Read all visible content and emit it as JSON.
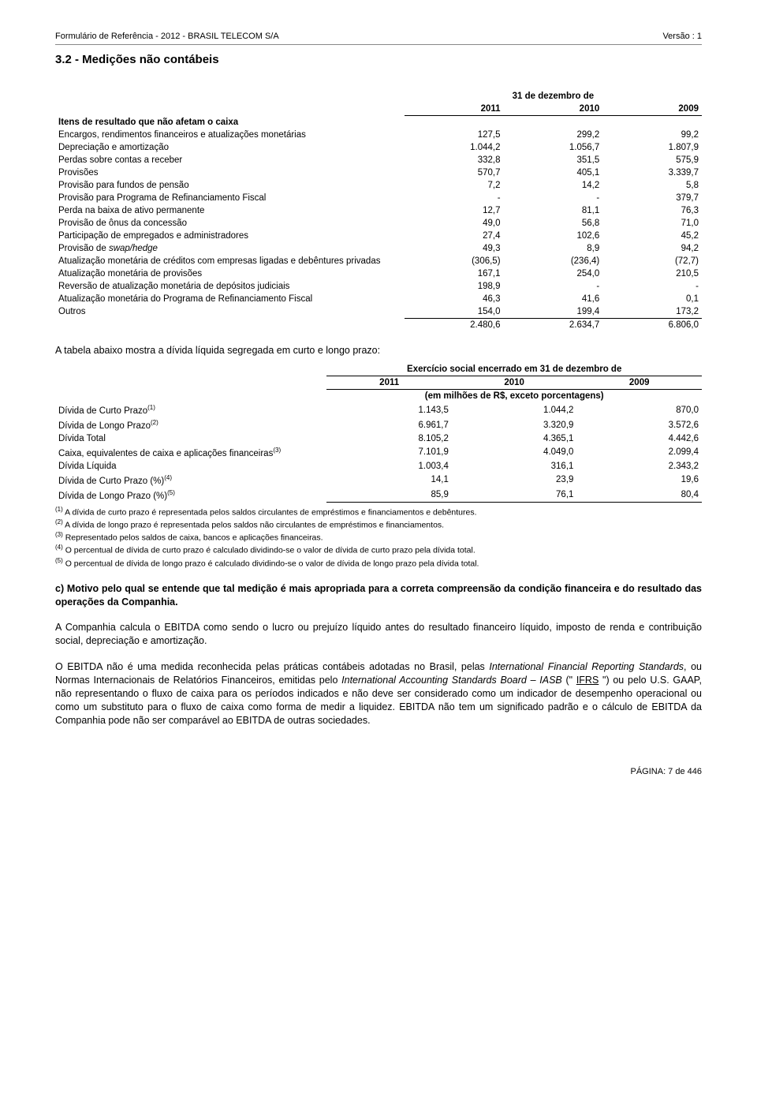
{
  "header": {
    "left": "Formulário de Referência - 2012 - BRASIL TELECOM S/A",
    "right": "Versão : 1"
  },
  "section_title": "3.2 - Medições não contábeis",
  "table1": {
    "top_header": "31 de dezembro de",
    "years": [
      "2011",
      "2010",
      "2009"
    ],
    "group_label": "Itens de resultado que não afetam o caixa",
    "rows": [
      {
        "label": "Encargos, rendimentos financeiros e atualizações monetárias",
        "v": [
          "127,5",
          "299,2",
          "99,2"
        ]
      },
      {
        "label": "Depreciação e amortização",
        "v": [
          "1.044,2",
          "1.056,7",
          "1.807,9"
        ]
      },
      {
        "label": "Perdas sobre contas a receber",
        "v": [
          "332,8",
          "351,5",
          "575,9"
        ]
      },
      {
        "label": "Provisões",
        "v": [
          "570,7",
          "405,1",
          "3.339,7"
        ]
      },
      {
        "label": "Provisão para fundos de pensão",
        "v": [
          "7,2",
          "14,2",
          "5,8"
        ]
      },
      {
        "label": "Provisão para Programa de Refinanciamento Fiscal",
        "v": [
          "-",
          "-",
          "379,7"
        ]
      },
      {
        "label": "Perda na baixa de ativo permanente",
        "v": [
          "12,7",
          "81,1",
          "76,3"
        ]
      },
      {
        "label": "Provisão de ônus da concessão",
        "v": [
          "49,0",
          "56,8",
          "71,0"
        ]
      },
      {
        "label": "Participação de empregados e administradores",
        "v": [
          "27,4",
          "102,6",
          "45,2"
        ]
      },
      {
        "label": "Provisão de swap/hedge",
        "italic_part": "swap/hedge",
        "v": [
          "49,3",
          "8,9",
          "94,2"
        ]
      },
      {
        "label": "Atualização monetária de créditos com empresas ligadas e debêntures privadas",
        "v": [
          "(306,5)",
          "(236,4)",
          "(72,7)"
        ]
      },
      {
        "label": "Atualização monetária de provisões",
        "v": [
          "167,1",
          "254,0",
          "210,5"
        ]
      },
      {
        "label": "Reversão de atualização monetária de depósitos judiciais",
        "v": [
          "198,9",
          "-",
          "-"
        ]
      },
      {
        "label": "Atualização monetária do Programa de Refinanciamento Fiscal",
        "v": [
          "46,3",
          "41,6",
          "0,1"
        ]
      },
      {
        "label": "Outros",
        "v": [
          "154,0",
          "199,4",
          "173,2"
        ],
        "underline": true
      }
    ],
    "total": [
      "2.480,6",
      "2.634,7",
      "6.806,0"
    ]
  },
  "para1": "A tabela abaixo mostra a dívida líquida segregada em curto e longo prazo:",
  "table2": {
    "top_header": "Exercício social encerrado em 31 de dezembro de",
    "years": [
      "2011",
      "2010",
      "2009"
    ],
    "unit_line": "(em milhões de R$, exceto porcentagens)",
    "rows": [
      {
        "label": "Dívida de Curto Prazo",
        "sup": "(1)",
        "v": [
          "1.143,5",
          "1.044,2",
          "870,0"
        ]
      },
      {
        "label": "Dívida de Longo Prazo",
        "sup": "(2)",
        "v": [
          "6.961,7",
          "3.320,9",
          "3.572,6"
        ]
      },
      {
        "label": "Dívida Total",
        "v": [
          "8.105,2",
          "4.365,1",
          "4.442,6"
        ]
      },
      {
        "label": "Caixa, equivalentes de caixa e aplicações financeiras",
        "sup": "(3)",
        "v": [
          "7.101,9",
          "4.049,0",
          "2.099,4"
        ]
      },
      {
        "label": "Dívida Líquida",
        "v": [
          "1.003,4",
          "316,1",
          "2.343,2"
        ]
      },
      {
        "label": "Dívida de Curto Prazo (%)",
        "sup": "(4)",
        "v": [
          "14,1",
          "23,9",
          "19,6"
        ]
      },
      {
        "label": "Dívida de Longo Prazo (%)",
        "sup": "(5)",
        "v": [
          "85,9",
          "76,1",
          "80,4"
        ],
        "underline": true
      }
    ]
  },
  "footnotes": [
    "A dívida de curto prazo é representada pelos saldos circulantes de empréstimos e financiamentos e debêntures.",
    "A dívida de longo prazo é representada pelos saldos não circulantes de empréstimos e financiamentos.",
    "Representado pelos saldos de caixa, bancos e aplicações financeiras.",
    "O percentual de dívida de curto prazo é calculado dividindo-se o valor de dívida de curto prazo pela dívida total.",
    "O percentual de dívida de longo prazo é calculado dividindo-se o valor de dívida de longo prazo pela dívida total."
  ],
  "section_c_title": "c) Motivo pelo qual se entende que tal medição é mais apropriada para a correta compreensão da condição financeira e do resultado das operações da Companhia.",
  "para_c1": "A Companhia calcula o EBITDA como sendo o lucro ou prejuízo líquido antes do resultado financeiro líquido, imposto de renda e contribuição social, depreciação e amortização.",
  "para_c2_pre": "O EBITDA não é uma medida reconhecida pelas práticas contábeis adotadas no Brasil, pelas ",
  "para_c2_it1": "International Financial Reporting Standards",
  "para_c2_mid1": ", ou Normas Internacionais de Relatórios Financeiros, emitidas pelo ",
  "para_c2_it2": "International Accounting Standards Board – IASB",
  "para_c2_mid2": " (\" ",
  "para_c2_u": "IFRS",
  "para_c2_post": " \") ou pelo U.S. GAAP, não representando o fluxo de caixa para os períodos indicados e não deve ser considerado como um indicador de desempenho operacional ou como um substituto para o fluxo de caixa como forma de medir a liquidez. EBITDA não tem um significado padrão e o cálculo de EBITDA da Companhia pode não ser comparável ao EBITDA de outras sociedades.",
  "page_number": "PÁGINA: 7 de 446"
}
